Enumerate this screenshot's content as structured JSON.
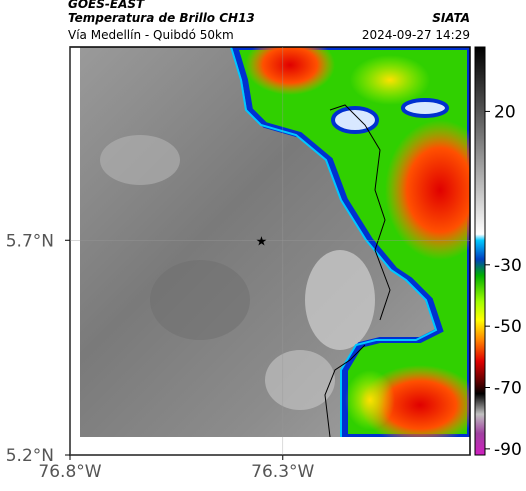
{
  "header": {
    "title": "GOES-EAST",
    "subtitle": "Temperatura de Brillo CH13",
    "source": "SIATA",
    "route": "Vía Medellín - Quibdó 50km",
    "datetime": "2024-09-27 14:29"
  },
  "map": {
    "xlim": [
      -76.8,
      -75.86
    ],
    "ylim": [
      5.2,
      6.15
    ],
    "xticks": [
      {
        "value": -76.8,
        "label": "76.8°W"
      },
      {
        "value": -76.3,
        "label": "76.3°W"
      }
    ],
    "yticks": [
      {
        "value": 5.2,
        "label": "5.2°N"
      },
      {
        "value": 5.7,
        "label": "5.7°N"
      }
    ],
    "marker": {
      "lon": -76.35,
      "lat": 5.7
    }
  },
  "colorbar": {
    "lim": [
      -92,
      41
    ],
    "ticks": [
      20,
      -30,
      -50,
      -70,
      -90
    ]
  }
}
